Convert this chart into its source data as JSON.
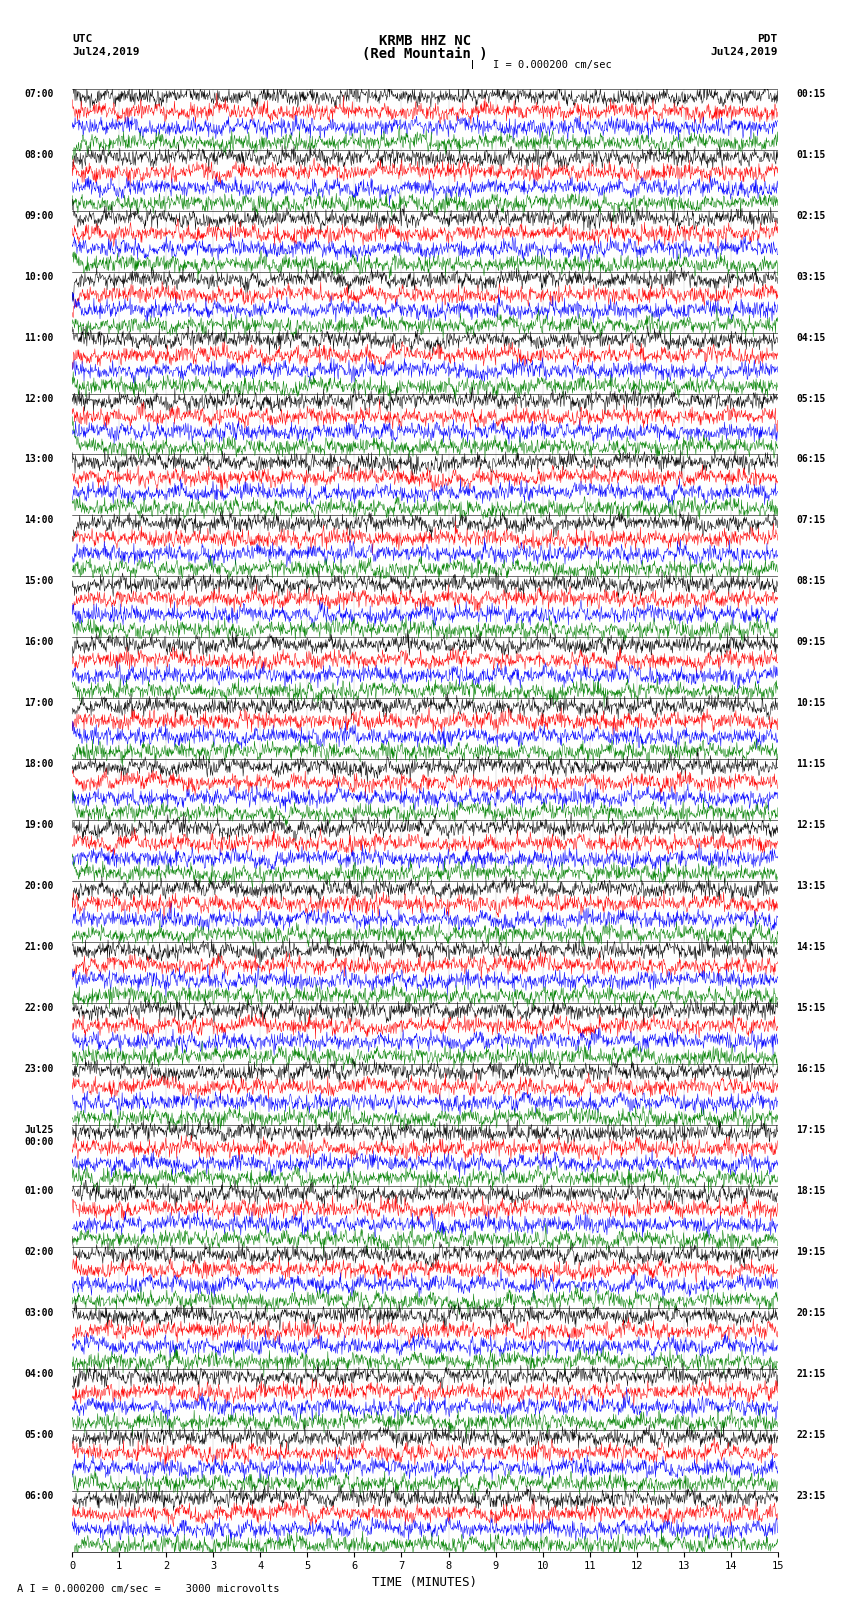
{
  "title_line1": "KRMB HHZ NC",
  "title_line2": "(Red Mountain )",
  "scale_label": "I = 0.000200 cm/sec",
  "footer_label": "A I = 0.000200 cm/sec =    3000 microvolts",
  "xlabel": "TIME (MINUTES)",
  "trace_colors": [
    "black",
    "red",
    "blue",
    "green"
  ],
  "bg_color": "white",
  "num_groups": 23,
  "traces_per_group": 4,
  "minutes": 15,
  "left_times": [
    "07:00",
    "08:00",
    "09:00",
    "10:00",
    "11:00",
    "12:00",
    "13:00",
    "14:00",
    "15:00",
    "16:00",
    "17:00",
    "18:00",
    "19:00",
    "20:00",
    "21:00",
    "22:00",
    "23:00",
    "Jul25\n00:00",
    "01:00",
    "02:00",
    "03:00",
    "04:00",
    "05:00"
  ],
  "right_times": [
    "00:15",
    "01:15",
    "02:15",
    "03:15",
    "04:15",
    "05:15",
    "06:15",
    "07:15",
    "08:15",
    "09:15",
    "10:15",
    "11:15",
    "12:15",
    "13:15",
    "14:15",
    "15:15",
    "16:15",
    "17:15",
    "18:15",
    "19:15",
    "20:15",
    "21:15",
    "22:15"
  ],
  "last_left_time": "06:00",
  "last_right_time": "23:15",
  "figsize": [
    8.5,
    16.13
  ],
  "dpi": 100
}
